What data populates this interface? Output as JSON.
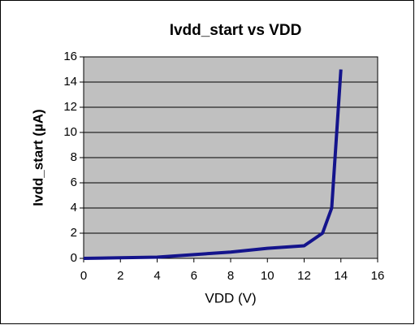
{
  "chart_data": {
    "type": "line",
    "title": "Ivdd_start vs VDD",
    "xlabel": "VDD (V)",
    "ylabel": "Ivdd_start (µA)",
    "x": [
      0,
      2,
      4,
      6,
      8,
      10,
      12,
      13,
      13.5,
      14
    ],
    "series": [
      {
        "name": "Ivdd_start",
        "color": "#14148c",
        "values": [
          0,
          0.05,
          0.1,
          0.3,
          0.5,
          0.8,
          1,
          2,
          4,
          15
        ]
      }
    ],
    "xlim": [
      0,
      16
    ],
    "xticks": [
      0,
      2,
      4,
      6,
      8,
      10,
      12,
      14,
      16
    ],
    "ylim": [
      0,
      16
    ],
    "yticks": [
      0,
      2,
      4,
      6,
      8,
      10,
      12,
      14,
      16
    ],
    "grid": true,
    "plot_background": "#c0c0c0"
  }
}
